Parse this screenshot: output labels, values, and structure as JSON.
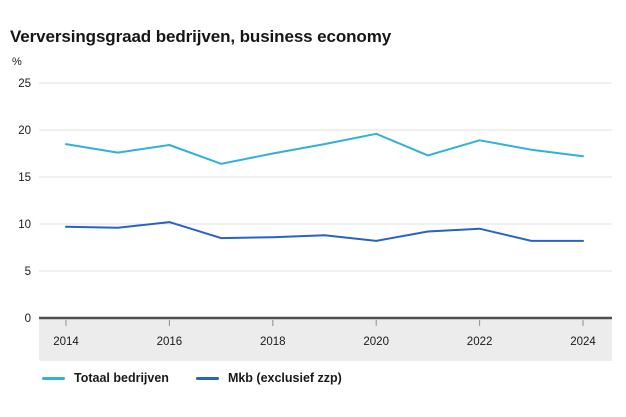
{
  "header": {
    "title": "Verversingsgraad bedrijven, business economy"
  },
  "chart_data": {
    "type": "line",
    "title": "Verversingsgraad bedrijven, business economy",
    "unit_label": "%",
    "categories": [
      2014,
      2015,
      2016,
      2017,
      2018,
      2019,
      2020,
      2021,
      2022,
      2023,
      2024
    ],
    "x_tick_labels": [
      "2014",
      "2016",
      "2018",
      "2020",
      "2022",
      "2024"
    ],
    "ylim": [
      0,
      25
    ],
    "y_tick_labels": [
      "0",
      "5",
      "10",
      "15",
      "20",
      "25"
    ],
    "grid": true,
    "legend_position": "bottom",
    "series": [
      {
        "name": "Totaal bedrijven",
        "color": "#2fb0dd",
        "values": [
          18.5,
          17.6,
          18.4,
          16.4,
          17.5,
          18.5,
          19.6,
          17.3,
          18.9,
          17.9,
          17.2
        ]
      },
      {
        "name": "Mkb (exclusief zzp)",
        "color": "#2763c6",
        "values": [
          9.7,
          9.6,
          10.2,
          8.5,
          8.6,
          8.8,
          8.2,
          9.2,
          9.5,
          8.2,
          8.2
        ]
      }
    ]
  },
  "colors": {
    "background": "#ffffff",
    "gridline": "#e2e2e2",
    "axis_band": "#ececec",
    "axis_line": "#4f4f51",
    "tick": "#8f8f8f",
    "text": "#1a1a1a",
    "title": "#161616"
  }
}
